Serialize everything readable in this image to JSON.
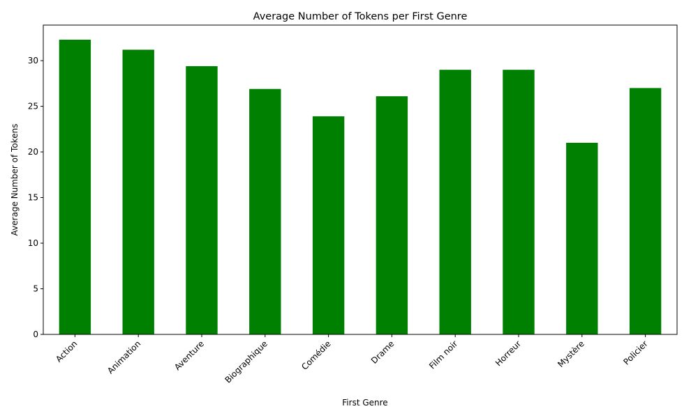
{
  "chart_data": {
    "type": "bar",
    "title": "Average Number of Tokens per First Genre",
    "xlabel": "First Genre",
    "ylabel": "Average Number of Tokens",
    "categories": [
      "Action",
      "Animation",
      "Aventure",
      "Biographique",
      "Comédie",
      "Drame",
      "Film noir",
      "Horreur",
      "Mystère",
      "Policier"
    ],
    "values": [
      32.3,
      31.2,
      29.4,
      26.9,
      23.9,
      26.1,
      29.0,
      29.0,
      21.0,
      27.0
    ],
    "ylim": [
      0,
      33.9
    ],
    "yticks": [
      0,
      5,
      10,
      15,
      20,
      25,
      30
    ],
    "bar_color": "#008000",
    "grid": false,
    "legend": "none"
  }
}
